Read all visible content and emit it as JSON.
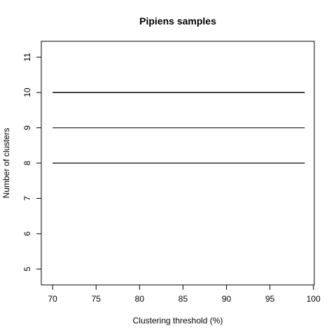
{
  "chart_data": {
    "type": "line",
    "title": "Pipiens samples",
    "xlabel": "Clustering threshold (%)",
    "ylabel": "Number of clusters",
    "xlim": [
      68.7,
      100.1
    ],
    "ylim": [
      4.55,
      11.45
    ],
    "x_ticks": [
      70,
      75,
      80,
      85,
      90,
      95,
      100
    ],
    "y_ticks": [
      5,
      6,
      7,
      8,
      9,
      10,
      11
    ],
    "grid": false,
    "series": [
      {
        "x": [
          70,
          99
        ],
        "values": [
          10,
          10
        ],
        "color": "#000000",
        "width": 1.5
      },
      {
        "x": [
          70,
          99
        ],
        "values": [
          9,
          9
        ],
        "color": "#000000",
        "width": 1
      },
      {
        "x": [
          70,
          99
        ],
        "values": [
          8,
          8
        ],
        "color": "#000000",
        "width": 1.2
      }
    ]
  }
}
